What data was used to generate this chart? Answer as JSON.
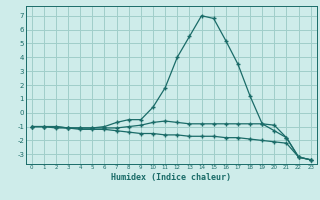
{
  "xlabel": "Humidex (Indice chaleur)",
  "xlim": [
    -0.5,
    23.5
  ],
  "ylim": [
    -3.7,
    7.7
  ],
  "yticks": [
    -3,
    -2,
    -1,
    0,
    1,
    2,
    3,
    4,
    5,
    6,
    7
  ],
  "xticks": [
    0,
    1,
    2,
    3,
    4,
    5,
    6,
    7,
    8,
    9,
    10,
    11,
    12,
    13,
    14,
    15,
    16,
    17,
    18,
    19,
    20,
    21,
    22,
    23
  ],
  "bg_color": "#ceecea",
  "grid_color": "#a0ceca",
  "line_color": "#1a6b68",
  "line1_x": [
    0,
    1,
    2,
    3,
    4,
    5,
    6,
    7,
    8,
    9,
    10,
    11,
    12,
    13,
    14,
    15,
    16,
    17,
    18,
    19,
    20,
    21,
    22,
    23
  ],
  "line1_y": [
    -1.0,
    -1.0,
    -1.0,
    -1.1,
    -1.1,
    -1.1,
    -1.0,
    -0.7,
    -0.5,
    -0.5,
    0.4,
    1.8,
    4.0,
    5.5,
    7.0,
    6.8,
    5.2,
    3.5,
    1.2,
    -0.8,
    -1.3,
    -1.8,
    -3.2,
    -3.4
  ],
  "line2_x": [
    0,
    1,
    2,
    3,
    4,
    5,
    6,
    7,
    8,
    9,
    10,
    11,
    12,
    13,
    14,
    15,
    16,
    17,
    18,
    19,
    20,
    21,
    22,
    23
  ],
  "line2_y": [
    -1.0,
    -1.0,
    -1.0,
    -1.1,
    -1.1,
    -1.1,
    -1.1,
    -1.1,
    -1.0,
    -0.9,
    -0.7,
    -0.6,
    -0.7,
    -0.8,
    -0.8,
    -0.8,
    -0.8,
    -0.8,
    -0.8,
    -0.8,
    -0.9,
    -1.8,
    -3.2,
    -3.4
  ],
  "line3_x": [
    0,
    1,
    2,
    3,
    4,
    5,
    6,
    7,
    8,
    9,
    10,
    11,
    12,
    13,
    14,
    15,
    16,
    17,
    18,
    19,
    20,
    21,
    22,
    23
  ],
  "line3_y": [
    -1.0,
    -1.0,
    -1.1,
    -1.1,
    -1.2,
    -1.2,
    -1.2,
    -1.3,
    -1.4,
    -1.5,
    -1.5,
    -1.6,
    -1.6,
    -1.7,
    -1.7,
    -1.7,
    -1.8,
    -1.8,
    -1.9,
    -2.0,
    -2.1,
    -2.2,
    -3.2,
    -3.4
  ],
  "marker": "+",
  "markersize": 3,
  "linewidth": 0.9
}
